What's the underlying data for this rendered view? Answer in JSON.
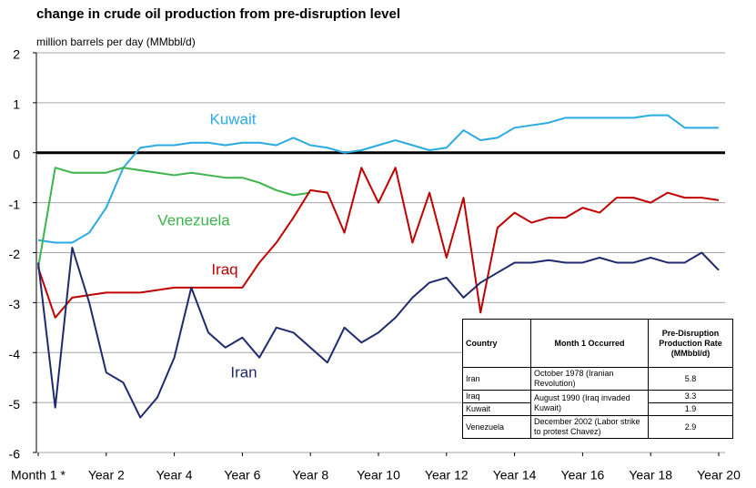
{
  "chart_data": {
    "type": "line",
    "title": "change in crude oil production from pre-disruption level",
    "y_label": "million barrels per day (MMbbl/d)",
    "xlim": [
      0,
      20
    ],
    "xticks": [
      {
        "value": 0,
        "label": "Month 1 *"
      },
      {
        "value": 2,
        "label": "Year 2"
      },
      {
        "value": 4,
        "label": "Year 4"
      },
      {
        "value": 6,
        "label": "Year 6"
      },
      {
        "value": 8,
        "label": "Year 8"
      },
      {
        "value": 10,
        "label": "Year 10"
      },
      {
        "value": 12,
        "label": "Year 12"
      },
      {
        "value": 14,
        "label": "Year 14"
      },
      {
        "value": 16,
        "label": "Year 16"
      },
      {
        "value": 18,
        "label": "Year 18"
      },
      {
        "value": 20,
        "label": "Year 20"
      }
    ],
    "ylim": [
      -6,
      2
    ],
    "yticks": [
      -6,
      -5,
      -4,
      -3,
      -2,
      -1,
      0,
      1,
      2
    ],
    "grid": true,
    "x": [
      0,
      0.5,
      1,
      1.5,
      2,
      2.5,
      3,
      3.5,
      4,
      4.5,
      5,
      5.5,
      6,
      6.5,
      7,
      7.5,
      8,
      8.5,
      9,
      9.5,
      10,
      10.5,
      11,
      11.5,
      12,
      12.5,
      13,
      13.5,
      14,
      14.5,
      15,
      15.5,
      16,
      16.5,
      17,
      17.5,
      18,
      18.5,
      19,
      19.5,
      20
    ],
    "series": [
      {
        "name": "Kuwait",
        "color": "#29abe2",
        "values": [
          -1.75,
          -1.8,
          -1.8,
          -1.6,
          -1.1,
          -0.3,
          0.1,
          0.15,
          0.15,
          0.2,
          0.2,
          0.15,
          0.2,
          0.2,
          0.15,
          0.3,
          0.15,
          0.1,
          0,
          0.05,
          0.15,
          0.25,
          0.15,
          0.05,
          0.1,
          0.45,
          0.25,
          0.3,
          0.5,
          0.55,
          0.6,
          0.7,
          0.7,
          0.7,
          0.7,
          0.7,
          0.75,
          0.75,
          0.5,
          0.5,
          0.5
        ]
      },
      {
        "name": "Venezuela",
        "color": "#3cb44b",
        "values": [
          -2.3,
          -0.3,
          -0.4,
          -0.4,
          -0.4,
          -0.3,
          -0.35,
          -0.4,
          -0.45,
          -0.4,
          -0.45,
          -0.5,
          -0.5,
          -0.6,
          -0.75,
          -0.85,
          -0.8,
          null,
          null,
          null,
          null,
          null,
          null,
          null,
          null,
          null,
          null,
          null,
          null,
          null,
          null,
          null,
          null,
          null,
          null,
          null,
          null,
          null,
          null,
          null,
          null
        ]
      },
      {
        "name": "Iraq",
        "color": "#c00000",
        "values": [
          -2.3,
          -3.3,
          -2.9,
          -2.85,
          -2.8,
          -2.8,
          -2.8,
          -2.75,
          -2.7,
          -2.7,
          -2.7,
          -2.7,
          -2.7,
          -2.2,
          -1.8,
          -1.3,
          -0.75,
          -0.8,
          -1.6,
          -0.3,
          -1.0,
          -0.3,
          -1.8,
          -0.8,
          -2.1,
          -0.9,
          -3.2,
          -1.5,
          -1.2,
          -1.4,
          -1.3,
          -1.3,
          -1.1,
          -1.2,
          -0.9,
          -0.9,
          -1.0,
          -0.8,
          -0.9,
          -0.9,
          -0.95
        ]
      },
      {
        "name": "Iran",
        "color": "#1f2a6e",
        "values": [
          -2.2,
          -5.1,
          -1.9,
          -3.0,
          -4.4,
          -4.6,
          -5.3,
          -4.9,
          -4.1,
          -2.7,
          -3.6,
          -3.9,
          -3.7,
          -4.1,
          -3.5,
          -3.6,
          -3.9,
          -4.2,
          -3.5,
          -3.8,
          -3.6,
          -3.3,
          -2.9,
          -2.6,
          -2.5,
          -2.9,
          -2.6,
          -2.4,
          -2.2,
          -2.2,
          -2.15,
          -2.2,
          -2.2,
          -2.1,
          -2.2,
          -2.2,
          -2.1,
          -2.2,
          -2.2,
          -2.0,
          -2.35
        ]
      }
    ]
  },
  "table": {
    "header": [
      "Country",
      "Month 1 Occurred",
      "Pre-Disruption Production Rate (MMbbl/d)"
    ],
    "rows": [
      {
        "country": "Iran",
        "occurred": "October 1978 (Iranian Revolution)",
        "rate": 5.8
      },
      {
        "country": "Iraq",
        "occurred": "August 1990 (Iraq invaded Kuwait)",
        "rate": 3.3
      },
      {
        "country": "Kuwait",
        "rate": 1.9
      },
      {
        "country": "Venezuela",
        "occurred": "December 2002 (Labor strike to protest Chavez)",
        "rate": 2.9
      }
    ]
  }
}
